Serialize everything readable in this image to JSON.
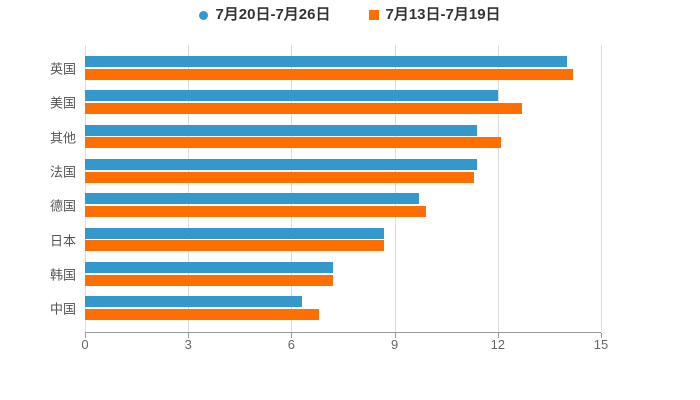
{
  "chart_data": {
    "type": "bar",
    "orientation": "horizontal",
    "title": "",
    "xlabel": "",
    "ylabel": "",
    "categories": [
      "英国",
      "美国",
      "其他",
      "法国",
      "德国",
      "日本",
      "韩国",
      "中国"
    ],
    "series": [
      {
        "name": "7月20日-7月26日",
        "marker": "circle",
        "color": "#3399CC",
        "values": [
          14.0,
          12.0,
          11.4,
          11.4,
          9.7,
          8.7,
          7.2,
          6.3
        ]
      },
      {
        "name": "7月13日-7月19日",
        "marker": "square",
        "color": "#FF6E00",
        "values": [
          14.2,
          12.7,
          12.1,
          11.3,
          9.9,
          8.7,
          7.2,
          6.8
        ]
      }
    ],
    "x_ticks": [
      "0",
      "3",
      "6",
      "9",
      "12",
      "15"
    ],
    "xlim": [
      0,
      15
    ],
    "grid": true,
    "legend_position": "top-center",
    "colors": {
      "background": "#FFFFFF",
      "grid_line": "#DDDDDD",
      "axis_line": "#999999",
      "x_tick_label": "#666666",
      "y_category_label": "#555555",
      "legend_text": "#333333"
    }
  }
}
